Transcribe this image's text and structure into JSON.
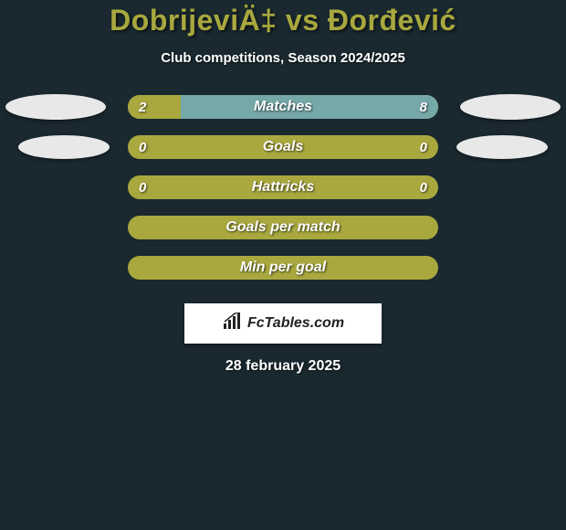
{
  "header": {
    "player1": "DobrijeviÄ‡",
    "vs": "vs",
    "player2": "Đorđević",
    "subtitle": "Club competitions, Season 2024/2025"
  },
  "stats": [
    {
      "label": "Matches",
      "left_value": "2",
      "right_value": "8",
      "left_fill_pct": 17,
      "right_fill_pct": 83,
      "left_color": "#a8a83e",
      "right_color": "#76a8a8",
      "show_ellipses": true,
      "ellipse_size": "big"
    },
    {
      "label": "Goals",
      "left_value": "0",
      "right_value": "0",
      "left_fill_pct": 0,
      "right_fill_pct": 0,
      "base_color": "#a8a83e",
      "show_ellipses": true,
      "ellipse_size": "small"
    },
    {
      "label": "Hattricks",
      "left_value": "0",
      "right_value": "0",
      "left_fill_pct": 0,
      "right_fill_pct": 0,
      "base_color": "#a8a83e",
      "show_ellipses": false
    },
    {
      "label": "Goals per match",
      "left_value": "",
      "right_value": "",
      "left_fill_pct": 0,
      "right_fill_pct": 0,
      "base_color": "#a8a83e",
      "show_ellipses": false
    },
    {
      "label": "Min per goal",
      "left_value": "",
      "right_value": "",
      "left_fill_pct": 0,
      "right_fill_pct": 0,
      "base_color": "#a8a83e",
      "show_ellipses": false
    }
  ],
  "footer": {
    "logo_text": "FcTables.com",
    "date": "28 february 2025"
  },
  "colors": {
    "background": "#1a2930",
    "accent": "#a8a83e",
    "secondary": "#76a8a8",
    "ellipse": "#e8e8e8",
    "text": "#ffffff",
    "logo_bg": "#ffffff",
    "logo_text": "#222222"
  }
}
